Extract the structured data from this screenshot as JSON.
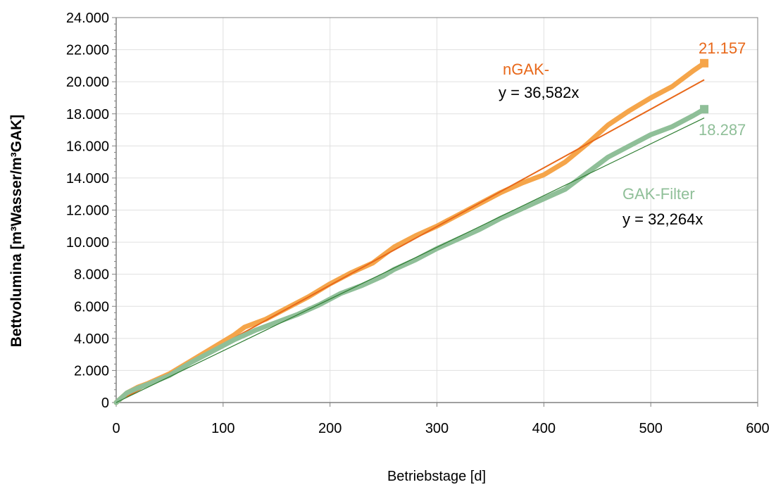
{
  "chart_data": {
    "type": "line",
    "xlabel": "Betriebstage [d]",
    "ylabel": "Bettvolumina [m³Wasser/m³GAK]",
    "xlim": [
      0,
      600
    ],
    "ylim": [
      0,
      24000
    ],
    "x_ticks": [
      0,
      100,
      200,
      300,
      400,
      500,
      600
    ],
    "x_tick_labels": [
      "0",
      "100",
      "200",
      "300",
      "400",
      "500",
      "600"
    ],
    "y_ticks": [
      0,
      2000,
      4000,
      6000,
      8000,
      10000,
      12000,
      14000,
      16000,
      18000,
      20000,
      22000,
      24000
    ],
    "y_tick_labels": [
      "0",
      "2.000",
      "4.000",
      "6.000",
      "8.000",
      "10.000",
      "12.000",
      "14.000",
      "16.000",
      "18.000",
      "20.000",
      "22.000",
      "24.000"
    ],
    "grid": true,
    "series": [
      {
        "name": "nGAK-",
        "color": "#f5a54a",
        "trend_color": "#e8681a",
        "trend_slope": 36.582,
        "equation": "y = 36,582x",
        "end_label": "21.157",
        "end_value": 21157,
        "points": [
          [
            0,
            0
          ],
          [
            10,
            600
          ],
          [
            20,
            950
          ],
          [
            30,
            1200
          ],
          [
            50,
            1800
          ],
          [
            70,
            2600
          ],
          [
            90,
            3400
          ],
          [
            110,
            4200
          ],
          [
            120,
            4700
          ],
          [
            140,
            5200
          ],
          [
            160,
            5900
          ],
          [
            180,
            6600
          ],
          [
            200,
            7400
          ],
          [
            220,
            8100
          ],
          [
            240,
            8700
          ],
          [
            250,
            9200
          ],
          [
            260,
            9700
          ],
          [
            280,
            10400
          ],
          [
            300,
            11000
          ],
          [
            320,
            11700
          ],
          [
            340,
            12400
          ],
          [
            360,
            13100
          ],
          [
            380,
            13700
          ],
          [
            400,
            14200
          ],
          [
            420,
            15000
          ],
          [
            440,
            16100
          ],
          [
            460,
            17300
          ],
          [
            480,
            18200
          ],
          [
            500,
            19000
          ],
          [
            520,
            19700
          ],
          [
            540,
            20700
          ],
          [
            550,
            21157
          ]
        ]
      },
      {
        "name": "GAK-Filter",
        "color": "#8fbf98",
        "trend_color": "#2e7d32",
        "trend_slope": 32.264,
        "equation": "y = 32,264x",
        "end_label": "18.287",
        "end_value": 18287,
        "points": [
          [
            0,
            0
          ],
          [
            10,
            600
          ],
          [
            20,
            900
          ],
          [
            30,
            1150
          ],
          [
            50,
            1700
          ],
          [
            70,
            2500
          ],
          [
            90,
            3200
          ],
          [
            110,
            3900
          ],
          [
            130,
            4500
          ],
          [
            150,
            5000
          ],
          [
            170,
            5500
          ],
          [
            190,
            6100
          ],
          [
            210,
            6800
          ],
          [
            230,
            7300
          ],
          [
            250,
            7900
          ],
          [
            260,
            8300
          ],
          [
            280,
            8900
          ],
          [
            300,
            9600
          ],
          [
            320,
            10200
          ],
          [
            340,
            10800
          ],
          [
            360,
            11500
          ],
          [
            380,
            12100
          ],
          [
            400,
            12700
          ],
          [
            420,
            13300
          ],
          [
            440,
            14300
          ],
          [
            460,
            15300
          ],
          [
            480,
            16000
          ],
          [
            500,
            16700
          ],
          [
            520,
            17200
          ],
          [
            540,
            17900
          ],
          [
            550,
            18287
          ]
        ]
      }
    ],
    "annotations": {
      "ngak_label": "nGAK-",
      "ngak_equation": "y = 36,582x",
      "gak_label": "GAK-Filter",
      "gak_equation": "y = 32,264x"
    }
  }
}
